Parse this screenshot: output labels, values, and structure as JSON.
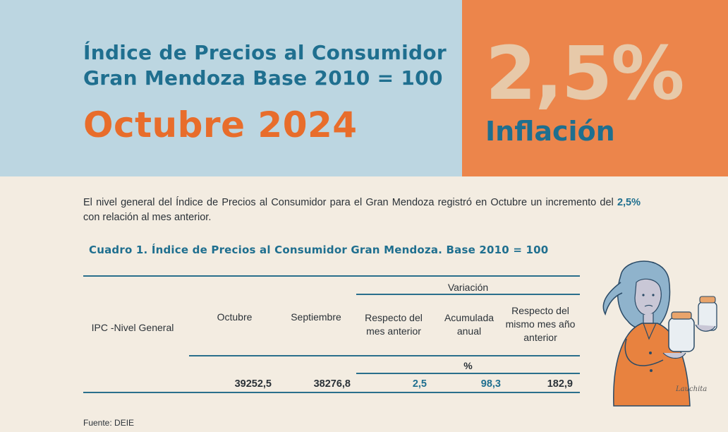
{
  "header": {
    "title_line1": "Índice de Precios al Consumidor",
    "title_line2": "Gran Mendoza Base 2010 = 100",
    "month": "Octubre 2024",
    "rate": "2,5%",
    "rate_label": "Inflación"
  },
  "intro": {
    "text_before": "El nivel general del Índice de Precios al Consumidor para el Gran Mendoza registró en Octubre un incremento del ",
    "highlight": "2,5%",
    "text_after": " con relación al mes anterior."
  },
  "table": {
    "caption": "Cuadro 1. Índice de Precios al Consumidor Gran Mendoza. Base 2010 = 100",
    "group_header": "Variación",
    "unit": "%",
    "columns": [
      "IPC -Nivel General",
      "Octubre",
      "Septiembre",
      "Respecto del mes anterior",
      "Acumulada anual",
      "Respecto del mismo mes año anterior"
    ],
    "row": [
      "",
      "39252,5",
      "38276,8",
      "2,5",
      "98,3",
      "182,9"
    ]
  },
  "illustration": {
    "signature": "Lauchita"
  },
  "source": "Fuente: DEIE",
  "colors": {
    "banner_blue": "#bcd6e1",
    "banner_orange": "#ec854b",
    "title_blue": "#1f6f8f",
    "accent_orange": "#e86d2b",
    "background": "#f3ece1"
  }
}
